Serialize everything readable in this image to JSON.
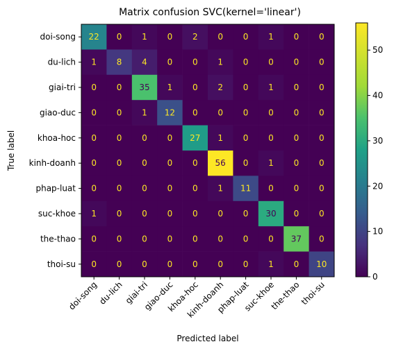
{
  "chart_data": {
    "type": "heatmap",
    "title": "Matrix confusion SVC(kernel='linear')",
    "xlabel": "Predicted label",
    "ylabel": "True label",
    "row_labels": [
      "doi-song",
      "du-lich",
      "giai-tri",
      "giao-duc",
      "khoa-hoc",
      "kinh-doanh",
      "phap-luat",
      "suc-khoe",
      "the-thao",
      "thoi-su"
    ],
    "col_labels": [
      "doi-song",
      "du-lich",
      "giai-tri",
      "giao-duc",
      "khoa-hoc",
      "kinh-doanh",
      "phap-luat",
      "suc-khoe",
      "the-thao",
      "thoi-su"
    ],
    "values": [
      [
        22,
        0,
        1,
        0,
        2,
        0,
        0,
        1,
        0,
        0
      ],
      [
        1,
        8,
        4,
        0,
        0,
        1,
        0,
        0,
        0,
        0
      ],
      [
        0,
        0,
        35,
        1,
        0,
        2,
        0,
        1,
        0,
        0
      ],
      [
        0,
        0,
        1,
        12,
        0,
        0,
        0,
        0,
        0,
        0
      ],
      [
        0,
        0,
        0,
        0,
        27,
        1,
        0,
        0,
        0,
        0
      ],
      [
        0,
        0,
        0,
        0,
        0,
        56,
        0,
        1,
        0,
        0
      ],
      [
        0,
        0,
        0,
        0,
        0,
        1,
        11,
        0,
        0,
        0
      ],
      [
        1,
        0,
        0,
        0,
        0,
        0,
        0,
        30,
        0,
        0
      ],
      [
        0,
        0,
        0,
        0,
        0,
        0,
        0,
        0,
        37,
        0
      ],
      [
        0,
        0,
        0,
        0,
        0,
        0,
        0,
        1,
        0,
        10
      ]
    ],
    "colormap": "viridis",
    "vmin": 0,
    "vmax": 56,
    "colorbar_ticks": [
      0,
      10,
      20,
      30,
      40,
      50
    ],
    "text_color_dark_cells": "#fde725",
    "text_color_light_cells": "#440154"
  }
}
